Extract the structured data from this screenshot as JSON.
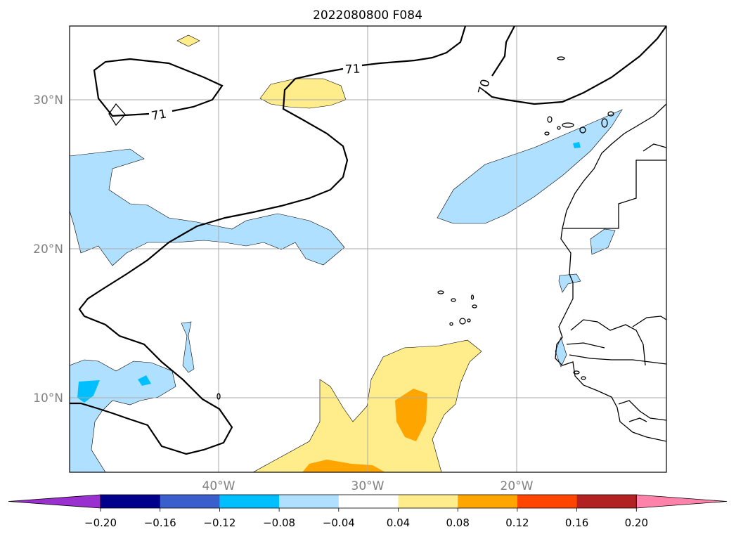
{
  "title": "2022080800 F084",
  "map": {
    "lat_labels": [
      "30°N",
      "20°N",
      "10°N"
    ],
    "lon_labels": [
      "40°W",
      "30°W",
      "20°W"
    ],
    "contour_labels": [
      "71",
      "71",
      "70"
    ],
    "gridlines": true,
    "coastlines": true
  },
  "colorbar": {
    "tick_labels": [
      "−0.20",
      "−0.16",
      "−0.12",
      "−0.08",
      "−0.04",
      "0.04",
      "0.08",
      "0.12",
      "0.16",
      "0.20"
    ],
    "colors": [
      "#9b30d0",
      "#00008b",
      "#3a5fcd",
      "#00bfff",
      "#b0e0ff",
      "#ffffff",
      "#ffec8b",
      "#ffa500",
      "#ff4500",
      "#b22222",
      "#ff82ab"
    ],
    "extend": "both"
  }
}
